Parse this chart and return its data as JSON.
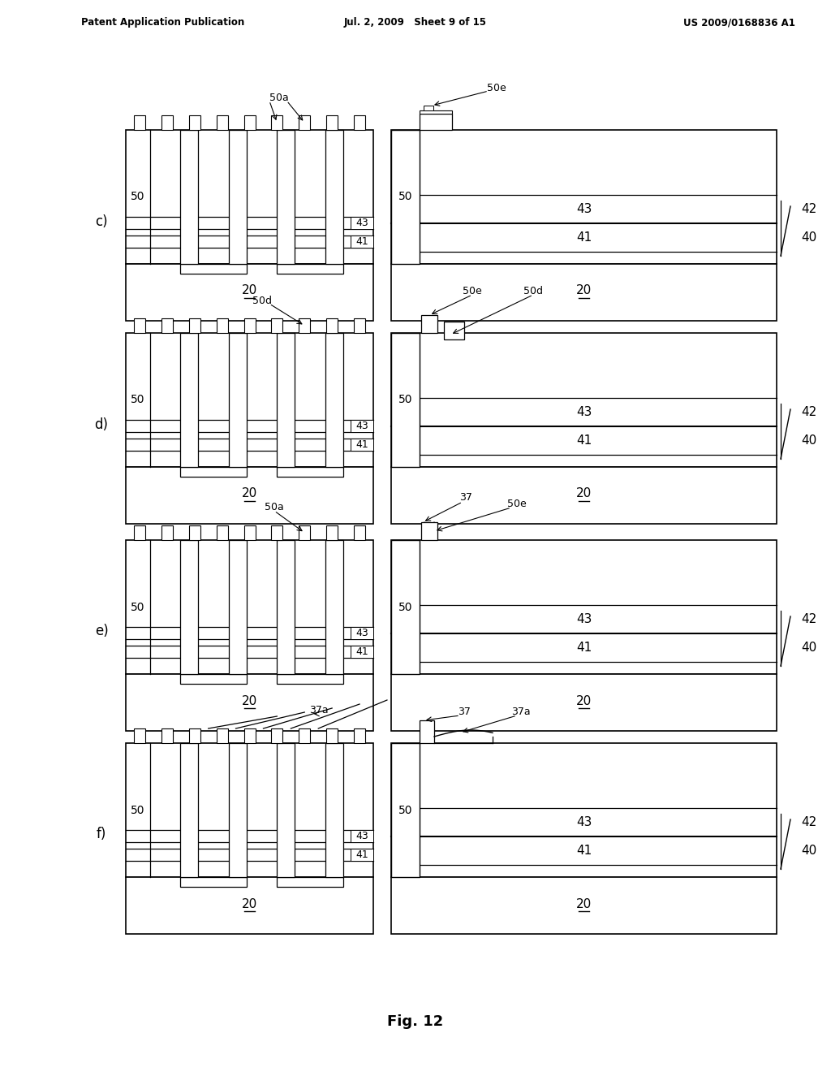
{
  "bg_color": "#ffffff",
  "header_left": "Patent Application Publication",
  "header_mid": "Jul. 2, 2009   Sheet 9 of 15",
  "header_right": "US 2009/0168836 A1",
  "fig_label": "Fig. 12",
  "row_labels": [
    "c)",
    "d)",
    "e)",
    "f)"
  ]
}
